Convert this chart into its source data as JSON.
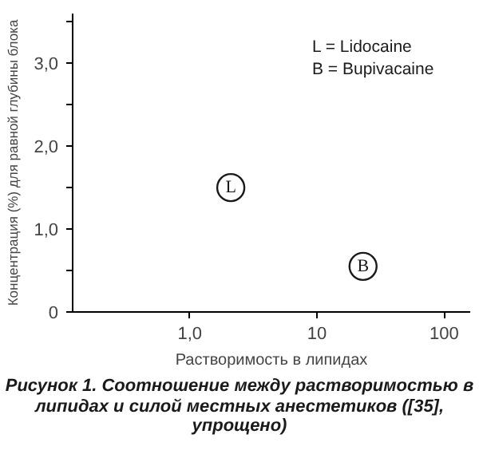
{
  "chart_data": {
    "type": "scatter",
    "xlabel": "Растворимость в липидах",
    "ylabel": "Концентрация (%) для равной глубины блока",
    "x": [
      2.1,
      23
    ],
    "series": [
      {
        "color": "#1a1a1a",
        "values": [
          1.5,
          0.55
        ],
        "value_labels": [
          "L",
          "B"
        ]
      }
    ],
    "marker": "circle",
    "log": "x",
    "xlim": [
      0.12,
      160
    ],
    "ylim": [
      0,
      3.6
    ],
    "xticks": [
      {
        "value": 1,
        "label": "1,0"
      },
      10,
      100
    ],
    "yticks": [
      {
        "value": 0,
        "label": "0"
      },
      {
        "value": 0.5,
        "label": null
      },
      {
        "value": 1,
        "label": "1,0"
      },
      {
        "value": 1.5,
        "label": null
      },
      {
        "value": 2,
        "label": "2,0"
      },
      {
        "value": 2.5,
        "label": null
      },
      {
        "value": 3,
        "label": "3,0"
      },
      {
        "value": 3.5,
        "label": null
      }
    ],
    "grid": false,
    "annotations": [
      "L = Lidocaine",
      "B = Bupivacaine",
      "Рисунок 1. Соотношение между растворимостью в липидах и силой местных анестетиков ([35], упрощено)"
    ]
  }
}
